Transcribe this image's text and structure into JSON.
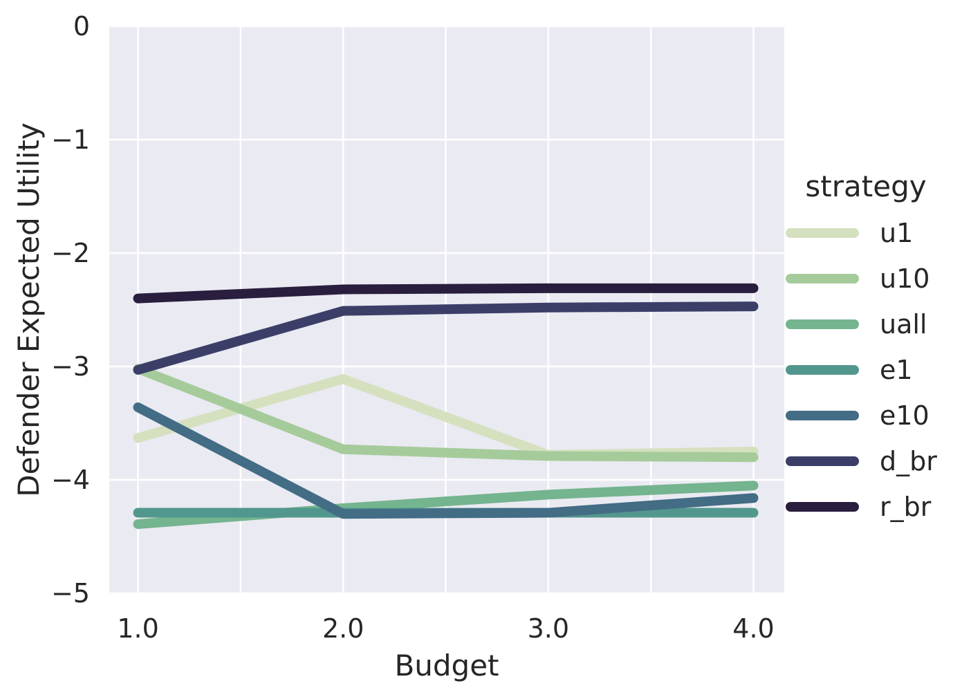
{
  "chart_data": {
    "type": "line",
    "title": "",
    "xlabel": "Budget",
    "ylabel": "Defender Expected Utility",
    "x": [
      1.0,
      2.0,
      3.0,
      4.0
    ],
    "x_tick_labels": [
      "1.0",
      "2.0",
      "3.0",
      "4.0"
    ],
    "y_tick_labels": [
      "0",
      "−1",
      "−2",
      "−3",
      "−4",
      "−5"
    ],
    "y_ticks": [
      0,
      -1,
      -2,
      -3,
      -4,
      -5
    ],
    "xlim": [
      0.86,
      4.15
    ],
    "ylim": [
      -5,
      0
    ],
    "grid": true,
    "legend_title": "strategy",
    "legend_position": "right",
    "series": [
      {
        "name": "u1",
        "color": "#d5e0bf",
        "values": [
          -3.63,
          -3.11,
          -3.78,
          -3.75
        ]
      },
      {
        "name": "u10",
        "color": "#a6cb9b",
        "values": [
          -3.02,
          -3.73,
          -3.79,
          -3.8
        ]
      },
      {
        "name": "uall",
        "color": "#74b48f",
        "values": [
          -4.39,
          -4.25,
          -4.13,
          -4.05
        ]
      },
      {
        "name": "e1",
        "color": "#52978d",
        "values": [
          -4.29,
          -4.29,
          -4.29,
          -4.29
        ]
      },
      {
        "name": "e10",
        "color": "#436c85",
        "values": [
          -3.36,
          -4.3,
          -4.29,
          -4.16
        ]
      },
      {
        "name": "d_br",
        "color": "#3b3f68",
        "values": [
          -3.03,
          -2.51,
          -2.48,
          -2.47
        ]
      },
      {
        "name": "r_br",
        "color": "#2a1e3e",
        "values": [
          -2.4,
          -2.32,
          -2.31,
          -2.31
        ]
      }
    ]
  }
}
